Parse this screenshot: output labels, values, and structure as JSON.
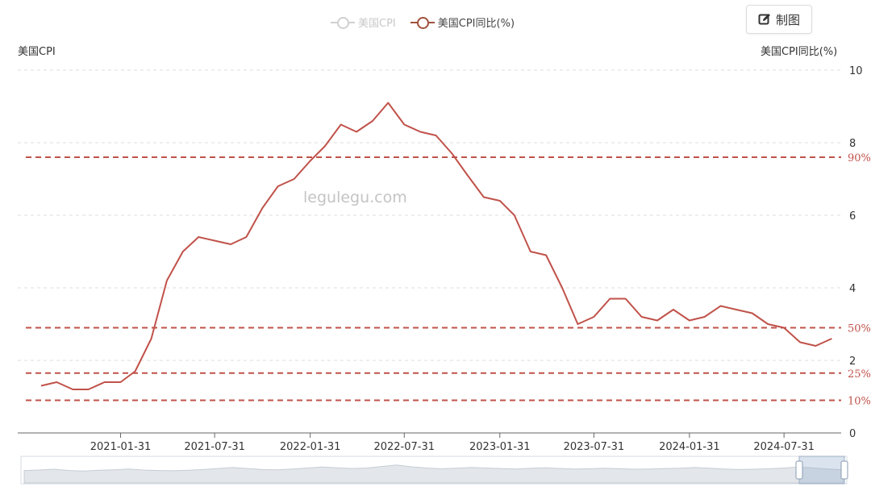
{
  "legend": {
    "items": [
      {
        "label": "美国CPI",
        "state": "off"
      },
      {
        "label": "美国CPI同比(%)",
        "state": "on"
      }
    ]
  },
  "toolbar": {
    "chart_button_label": "制图",
    "chart_button_icon": "edit-icon"
  },
  "watermark": "legulegu.com",
  "colors": {
    "line": "#c0524a",
    "grid": "#dddddd",
    "percentile": "#c0524a",
    "percentile_text": "#c0524a"
  },
  "chart_data": {
    "type": "line",
    "left_axis_title": "美国CPI",
    "right_axis_title": "美国CPI同比(%)",
    "y_ticks": [
      "10",
      "8",
      "6",
      "4",
      "2",
      "0"
    ],
    "ylim": [
      0,
      10
    ],
    "x_tick_labels": [
      "2021-01-31",
      "2021-07-31",
      "2022-01-31",
      "2022-07-31",
      "2023-01-31",
      "2023-07-31",
      "2024-01-31",
      "2024-07-31"
    ],
    "grid": true,
    "percentile_lines": [
      {
        "label": "90%",
        "value": 7.6
      },
      {
        "label": "50%",
        "value": 2.9
      },
      {
        "label": "25%",
        "value": 1.65
      },
      {
        "label": "10%",
        "value": 0.9
      }
    ],
    "series": [
      {
        "name": "美国CPI同比(%)",
        "x": [
          "2020-08-31",
          "2020-09-30",
          "2020-10-31",
          "2020-11-30",
          "2020-12-31",
          "2021-01-31",
          "2021-02-28",
          "2021-03-31",
          "2021-04-30",
          "2021-05-31",
          "2021-06-30",
          "2021-07-31",
          "2021-08-31",
          "2021-09-30",
          "2021-10-31",
          "2021-11-30",
          "2021-12-31",
          "2022-01-31",
          "2022-02-28",
          "2022-03-31",
          "2022-04-30",
          "2022-05-31",
          "2022-06-30",
          "2022-07-31",
          "2022-08-31",
          "2022-09-30",
          "2022-10-31",
          "2022-11-30",
          "2022-12-31",
          "2023-01-31",
          "2023-02-28",
          "2023-03-31",
          "2023-04-30",
          "2023-05-31",
          "2023-06-30",
          "2023-07-31",
          "2023-08-31",
          "2023-09-30",
          "2023-10-31",
          "2023-11-30",
          "2023-12-31",
          "2024-01-31",
          "2024-02-29",
          "2024-03-31",
          "2024-04-30",
          "2024-05-31",
          "2024-06-30",
          "2024-07-31",
          "2024-08-31",
          "2024-09-30",
          "2024-10-31"
        ],
        "values": [
          1.3,
          1.4,
          1.2,
          1.2,
          1.4,
          1.4,
          1.7,
          2.6,
          4.2,
          5.0,
          5.4,
          5.3,
          5.2,
          5.4,
          6.2,
          6.8,
          7.0,
          7.5,
          7.9,
          8.5,
          8.3,
          8.6,
          9.1,
          8.5,
          8.3,
          8.2,
          7.7,
          7.1,
          6.5,
          6.4,
          6.0,
          5.0,
          4.9,
          4.0,
          3.0,
          3.2,
          3.7,
          3.7,
          3.2,
          3.1,
          3.4,
          3.1,
          3.2,
          3.5,
          3.4,
          3.3,
          3.0,
          2.9,
          2.5,
          2.4,
          2.6
        ]
      }
    ]
  },
  "navigator": {
    "series_label": "美国CPI"
  }
}
